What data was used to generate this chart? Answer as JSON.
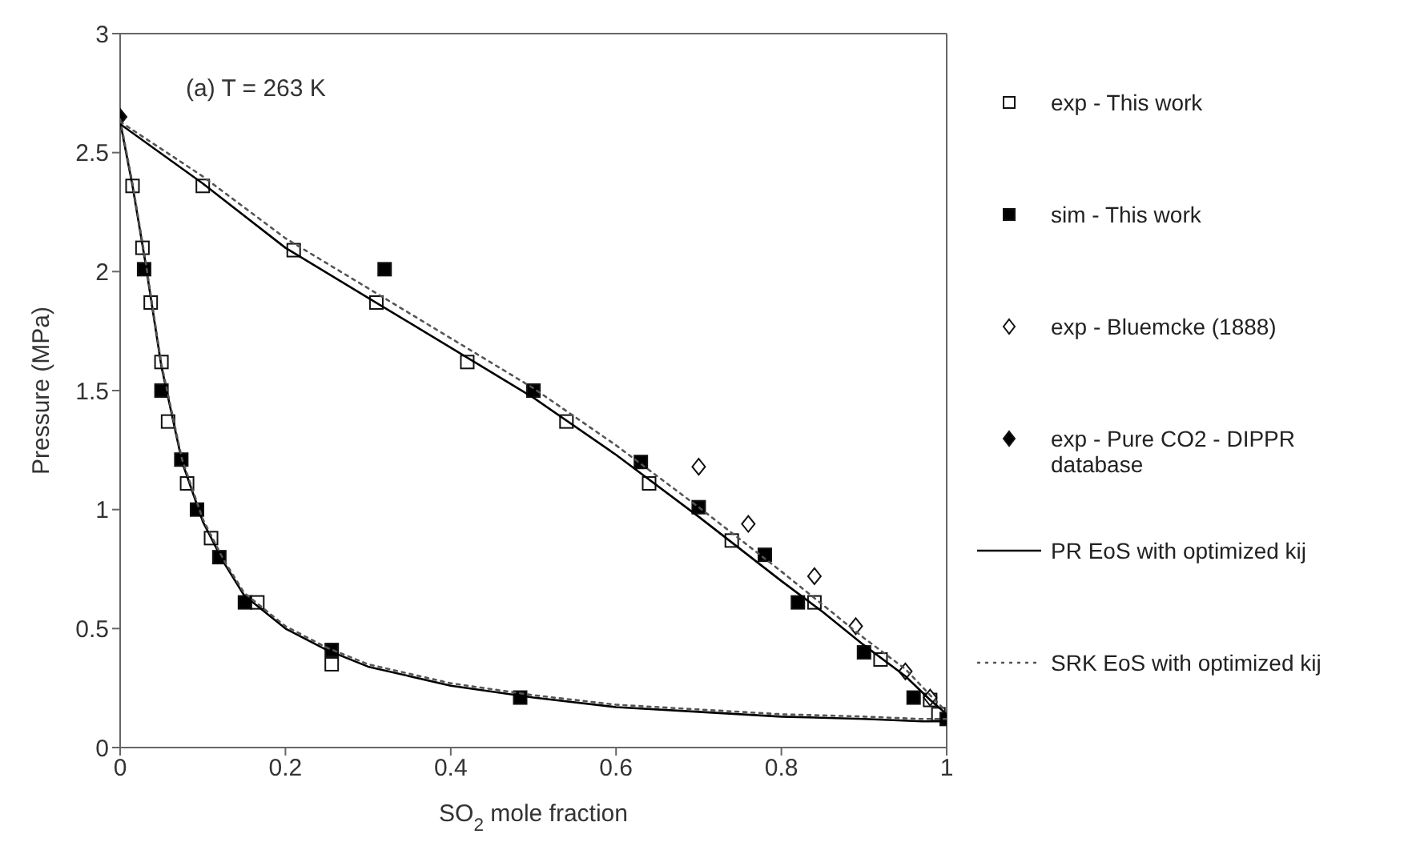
{
  "chart_data": {
    "type": "scatter",
    "annotations": [
      "(a) T = 263 K"
    ],
    "xlabel": "SO$_{2}$ mole fraction",
    "ylabel": "Pressure (MPa)",
    "xlim": [
      0,
      1
    ],
    "xticks": [
      0,
      0.2,
      0.4,
      0.6,
      0.8,
      1
    ],
    "ylim": [
      0,
      3
    ],
    "yticks": [
      0,
      0.5,
      1,
      1.5,
      2,
      2.5,
      3
    ],
    "grid": false,
    "legend": "right",
    "series": [
      {
        "name": "exp - This work",
        "type": "scatter",
        "marker": "square",
        "color": "#ffffff",
        "x": [
          0.1,
          0.21,
          0.31,
          0.42,
          0.54,
          0.64,
          0.74,
          0.84,
          0.92,
          0.98,
          0.99,
          0.015,
          0.027,
          0.037,
          0.05,
          0.058,
          0.081,
          0.11,
          0.166,
          0.256
        ],
        "values": [
          2.36,
          2.09,
          1.87,
          1.62,
          1.37,
          1.11,
          0.87,
          0.61,
          0.37,
          0.2,
          0.14,
          2.36,
          2.1,
          1.87,
          1.62,
          1.37,
          1.11,
          0.88,
          0.61,
          0.35
        ]
      },
      {
        "name": "sim - This work",
        "type": "scatter",
        "marker": "square",
        "color": "#000000",
        "x": [
          0.029,
          0.05,
          0.074,
          0.093,
          0.12,
          0.151,
          0.256,
          0.484,
          0.32,
          0.5,
          0.63,
          0.7,
          0.78,
          0.82,
          0.9,
          0.96,
          1.0
        ],
        "values": [
          2.01,
          1.5,
          1.21,
          1.0,
          0.8,
          0.61,
          0.41,
          0.21,
          2.01,
          1.5,
          1.2,
          1.01,
          0.81,
          0.61,
          0.4,
          0.21,
          0.12
        ]
      },
      {
        "name": "exp - Bluemcke (1888)",
        "type": "scatter",
        "marker": "diamond",
        "color": "#ffffff",
        "x": [
          0.7,
          0.76,
          0.84,
          0.89,
          0.95,
          0.98
        ],
        "values": [
          1.18,
          0.94,
          0.72,
          0.51,
          0.32,
          0.21
        ]
      },
      {
        "name": "exp - Pure CO2 - DIPPR database",
        "type": "scatter",
        "marker": "diamond",
        "color": "#000000",
        "x": [
          0
        ],
        "values": [
          2.65
        ]
      },
      {
        "name": "PR EoS with optimized kij",
        "type": "line",
        "marker": "none",
        "line_style": "solid",
        "color": "#000000",
        "x": [
          0,
          0.015,
          0.03,
          0.05,
          0.075,
          0.1,
          0.125,
          0.15,
          0.2,
          0.25,
          0.3,
          0.4,
          0.5,
          0.6,
          0.7,
          0.8,
          0.9,
          0.97,
          1
        ],
        "values": [
          2.63,
          2.36,
          2.05,
          1.6,
          1.2,
          0.95,
          0.78,
          0.64,
          0.5,
          0.41,
          0.34,
          0.26,
          0.21,
          0.17,
          0.15,
          0.13,
          0.12,
          0.11,
          0.11
        ]
      },
      {
        "type": "line",
        "marker": "none",
        "line_style": "solid",
        "color": "#000000",
        "x": [
          0,
          0.1,
          0.2,
          0.3,
          0.4,
          0.5,
          0.6,
          0.7,
          0.8,
          0.85,
          0.9,
          0.95,
          0.98,
          1
        ],
        "values": [
          2.62,
          2.37,
          2.1,
          1.89,
          1.68,
          1.47,
          1.23,
          0.97,
          0.7,
          0.57,
          0.43,
          0.3,
          0.2,
          0.14
        ]
      },
      {
        "name": "SRK EoS with optimized kij",
        "type": "line",
        "marker": "none",
        "line_style": "dotted",
        "color": "#555555",
        "x": [
          0,
          0.015,
          0.03,
          0.05,
          0.075,
          0.1,
          0.125,
          0.15,
          0.2,
          0.25,
          0.3,
          0.4,
          0.5,
          0.6,
          0.7,
          0.8,
          0.9,
          0.97,
          1
        ],
        "values": [
          2.64,
          2.37,
          2.06,
          1.61,
          1.21,
          0.96,
          0.79,
          0.65,
          0.51,
          0.42,
          0.35,
          0.27,
          0.22,
          0.18,
          0.16,
          0.14,
          0.13,
          0.12,
          0.12
        ]
      },
      {
        "type": "line",
        "marker": "none",
        "line_style": "dotted",
        "color": "#555555",
        "x": [
          0,
          0.1,
          0.2,
          0.3,
          0.4,
          0.5,
          0.6,
          0.7,
          0.8,
          0.85,
          0.9,
          0.95,
          0.98,
          1
        ],
        "values": [
          2.63,
          2.4,
          2.14,
          1.93,
          1.72,
          1.51,
          1.27,
          1.01,
          0.74,
          0.6,
          0.46,
          0.33,
          0.22,
          0.15
        ]
      }
    ]
  }
}
